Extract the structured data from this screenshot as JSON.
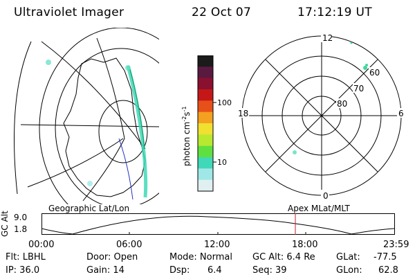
{
  "header": {
    "title": "Ultraviolet Imager",
    "date": "22 Oct 07",
    "time": "17:12:19 UT"
  },
  "colorbar": {
    "unit_label": "photon cm",
    "unit_exp1": "-2",
    "unit_mid": "s",
    "unit_exp2": "-1",
    "tick_100": "100",
    "tick_10": "10",
    "colors": [
      "#1b1b1b",
      "#5a1a40",
      "#8a1030",
      "#c41818",
      "#e8501a",
      "#f4a020",
      "#f0e030",
      "#b8e830",
      "#60e040",
      "#40d8b8",
      "#a0e8e8",
      "#e0f0f0"
    ]
  },
  "left_panel": {
    "name": "Geographic Lat/Lon",
    "aurora_color": "#40d8b8"
  },
  "right_panel": {
    "name": "Apex MLat/MLT",
    "lat_labels": [
      "60",
      "70",
      "80"
    ],
    "mlt_labels": {
      "top": "12",
      "bottom": "0",
      "left": "18",
      "right": "6"
    }
  },
  "altitude_plot": {
    "ylabel": "GC Alt",
    "ytick_high": "9.0",
    "ytick_low": "1.8",
    "xticks": [
      "00:00",
      "06:00",
      "12:00",
      "18:00",
      "23:59"
    ],
    "left_title": "Geographic Lat/Lon",
    "right_title": "Apex MLat/MLT",
    "marker_color": "#c02020"
  },
  "info": {
    "filter": "Flt: LBHL",
    "ip": "IP: 36.0",
    "door": "Door: Open",
    "gain": "Gain: 14",
    "mode": "Mode: Normal",
    "dsp_label": "Dsp:",
    "dsp_value": "6.4",
    "gc_alt": "GC Alt: 6.4 Re",
    "seq": "Seq: 39",
    "glat_label": "GLat:",
    "glat_value": "-77.5",
    "glon_label": "GLon:",
    "glon_value": "62.8"
  }
}
